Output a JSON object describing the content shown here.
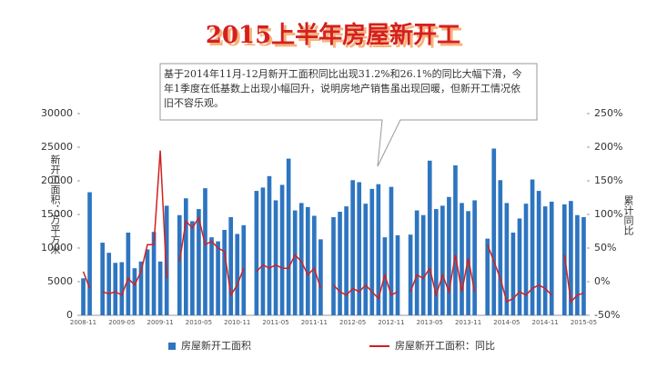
{
  "chart_data": {
    "type": "combo",
    "title": "2015上半年房屋新开工",
    "annotation": "基于2014年11月-12月新开工面积同比出现31.2%和26.1%的同比大幅下滑，今年1季度在低基数上出现小幅回升，说明房地产销售虽出现回暖，但新开工情况依旧不容乐观。",
    "y_label": "新开工面积：万平方米",
    "y2_label": "累计同比",
    "categories": [
      "2008-11",
      null,
      null,
      null,
      null,
      null,
      "2009-05",
      null,
      null,
      null,
      null,
      null,
      "2009-11",
      null,
      null,
      null,
      null,
      null,
      "2010-05",
      null,
      null,
      null,
      null,
      null,
      "2010-11",
      null,
      null,
      null,
      null,
      null,
      "2011-05",
      null,
      null,
      null,
      null,
      null,
      "2011-11",
      null,
      null,
      null,
      null,
      null,
      "2012-05",
      null,
      null,
      null,
      null,
      null,
      "2012-11",
      null,
      null,
      null,
      null,
      null,
      "2013-05",
      null,
      null,
      null,
      null,
      null,
      "2013-11",
      null,
      null,
      null,
      null,
      null,
      "2014-05",
      null,
      null,
      null,
      null,
      null,
      "2014-11",
      null,
      null,
      null,
      null,
      null,
      "2015-05"
    ],
    "series": [
      {
        "name": "房屋新开工面积",
        "type": "bar",
        "color": "#2e75c0",
        "values": [
          5500,
          18300,
          null,
          10800,
          9300,
          7800,
          7900,
          12300,
          7000,
          8000,
          9800,
          12400,
          8000,
          16300,
          null,
          14900,
          17400,
          14000,
          15800,
          18900,
          11600,
          11000,
          12700,
          14600,
          12100,
          13400,
          null,
          18500,
          19000,
          20700,
          17100,
          19400,
          23300,
          15600,
          16700,
          16100,
          14800,
          11300,
          null,
          14600,
          15400,
          16200,
          20100,
          19800,
          16600,
          18800,
          19500,
          11600,
          19100,
          11900,
          null,
          12000,
          15600,
          14900,
          23000,
          15800,
          16300,
          17600,
          22300,
          16700,
          15500,
          17100,
          null,
          11400,
          24800,
          20100,
          16700,
          12300,
          14400,
          16600,
          20200,
          18500,
          16200,
          16900,
          null,
          16500,
          17000,
          14900,
          14600
        ]
      },
      {
        "name": "房屋新开工面积：同比",
        "type": "line",
        "axis": "y2",
        "color": "#d42020",
        "values": [
          15,
          -10,
          null,
          -15,
          -18,
          -15,
          -20,
          5,
          -5,
          15,
          55,
          55,
          195,
          5,
          null,
          30,
          90,
          80,
          95,
          55,
          60,
          50,
          45,
          -20,
          -5,
          20,
          null,
          15,
          25,
          20,
          25,
          20,
          20,
          40,
          30,
          10,
          20,
          -10,
          null,
          -5,
          -15,
          -20,
          -10,
          -15,
          -5,
          -15,
          -25,
          10,
          -20,
          -15,
          null,
          -15,
          10,
          5,
          20,
          -20,
          10,
          -15,
          40,
          -15,
          35,
          -15,
          null,
          55,
          30,
          5,
          -30,
          -25,
          -15,
          -20,
          -10,
          -5,
          -10,
          -20,
          null,
          40,
          -30,
          -20,
          -17
        ]
      }
    ],
    "ylim": [
      0,
      30000
    ],
    "yticks": [
      0,
      5000,
      10000,
      15000,
      20000,
      25000,
      30000
    ],
    "y2lim": [
      -50,
      250
    ],
    "y2ticks": [
      {
        "value": -50,
        "label": "-50%"
      },
      {
        "value": 0,
        "label": "0%"
      },
      {
        "value": 50,
        "label": "50%"
      },
      {
        "value": 100,
        "label": "100%"
      },
      {
        "value": 150,
        "label": "150%"
      },
      {
        "value": 200,
        "label": "200%"
      },
      {
        "value": 250,
        "label": "250%"
      }
    ],
    "legend": "bottom"
  }
}
